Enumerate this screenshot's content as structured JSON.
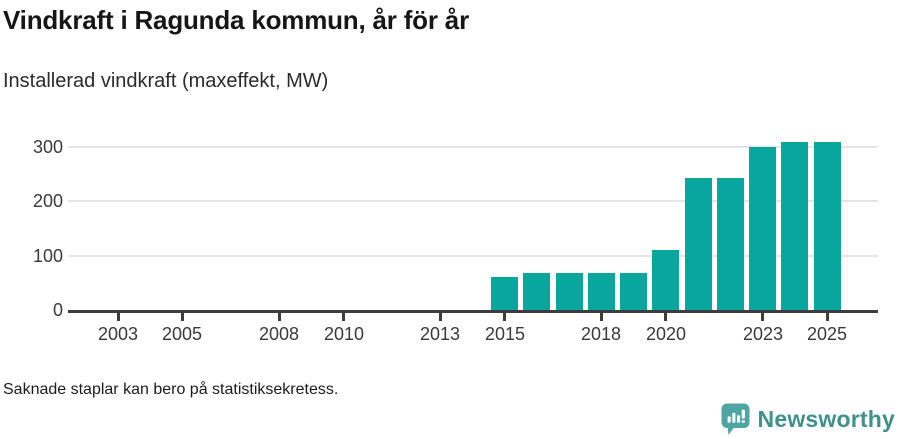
{
  "header": {
    "title": "Vindkraft i Ragunda kommun, år för år",
    "subtitle": "Installerad vindkraft (maxeffekt, MW)"
  },
  "footer": {
    "note": "Saknade staplar kan bero på statistiksekretess.",
    "brand": "Newsworthy",
    "brand_icon": "newsworthy-speech-bubble-chart-icon"
  },
  "colors": {
    "bar": "#09a69d",
    "gridline": "#e5e5e5",
    "axis": "#3d3d3d",
    "tick_label": "#3a3a3a",
    "brand_text": "#3f918c",
    "brand_icon": "#4ea6a3"
  },
  "chart_data": {
    "type": "bar",
    "title": "Vindkraft i Ragunda kommun, år för år",
    "subtitle": "Installerad vindkraft (maxeffekt, MW)",
    "unit": "MW",
    "xlabel": "",
    "ylabel": "",
    "categories": [
      2001,
      2002,
      2003,
      2004,
      2005,
      2006,
      2007,
      2008,
      2009,
      2010,
      2011,
      2012,
      2013,
      2014,
      2015,
      2016,
      2017,
      2018,
      2019,
      2020,
      2021,
      2022,
      2023,
      2024,
      2025
    ],
    "values": [
      null,
      null,
      null,
      null,
      null,
      null,
      null,
      null,
      null,
      null,
      null,
      null,
      null,
      null,
      60,
      68,
      68,
      68,
      68,
      110,
      243,
      243,
      300,
      309,
      309
    ],
    "x_tick_labels": [
      "2003",
      "2005",
      "2008",
      "2010",
      "2013",
      "2015",
      "2018",
      "2020",
      "2023",
      "2025"
    ],
    "y_ticks": [
      0,
      100,
      200,
      300
    ],
    "ylim": [
      0,
      335
    ],
    "xlim": [
      2001.5,
      2026.5
    ],
    "grid": "horizontal",
    "legend": "none",
    "bar_color": "#09a69d",
    "missing_bars_note": "Saknade staplar kan bero på statistiksekretess."
  }
}
